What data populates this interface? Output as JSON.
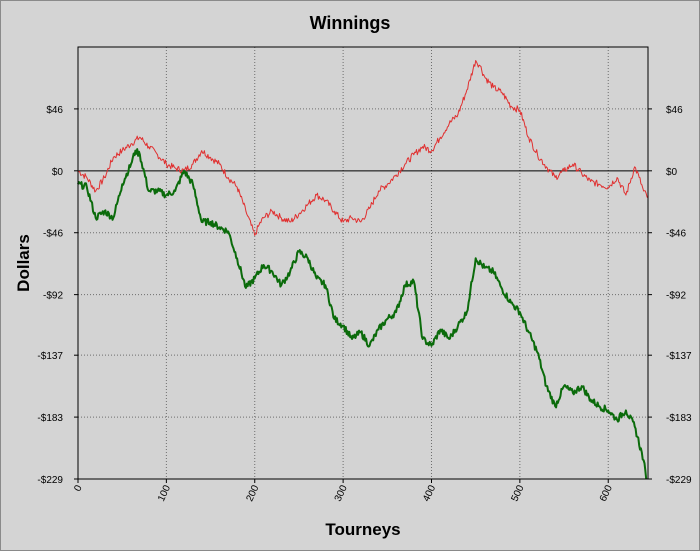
{
  "chart_data": {
    "type": "line",
    "title": "Winnings",
    "xlabel": "Tourneys",
    "ylabel": "Dollars",
    "xlim": [
      0,
      645
    ],
    "ylim": [
      -229,
      92
    ],
    "x_ticks": [
      0,
      100,
      200,
      300,
      400,
      500,
      600
    ],
    "x_tick_labels": [
      "0",
      "100",
      "200",
      "300",
      "400",
      "500",
      "600"
    ],
    "y_ticks": [
      46,
      0,
      -46,
      -92,
      -137,
      -183,
      -229
    ],
    "y_tick_labels": [
      "$46",
      "$0",
      "-$46",
      "-$92",
      "-$137",
      "-$183",
      "-$229"
    ],
    "grid": true,
    "zero_line": true,
    "colors": {
      "plot_background": "#d3d3d3",
      "page_background": "#d4d4d4"
    },
    "series": [
      {
        "color": "#e03030",
        "line_width": 1,
        "points": [
          [
            0,
            0
          ],
          [
            10,
            -5
          ],
          [
            20,
            -15
          ],
          [
            30,
            -5
          ],
          [
            40,
            10
          ],
          [
            50,
            15
          ],
          [
            60,
            20
          ],
          [
            70,
            25
          ],
          [
            80,
            18
          ],
          [
            90,
            12
          ],
          [
            100,
            5
          ],
          [
            110,
            2
          ],
          [
            120,
            0
          ],
          [
            130,
            5
          ],
          [
            140,
            15
          ],
          [
            150,
            10
          ],
          [
            160,
            5
          ],
          [
            170,
            -5
          ],
          [
            180,
            -12
          ],
          [
            190,
            -30
          ],
          [
            200,
            -48
          ],
          [
            205,
            -40
          ],
          [
            210,
            -35
          ],
          [
            220,
            -30
          ],
          [
            230,
            -35
          ],
          [
            240,
            -38
          ],
          [
            250,
            -32
          ],
          [
            260,
            -25
          ],
          [
            270,
            -18
          ],
          [
            280,
            -22
          ],
          [
            290,
            -30
          ],
          [
            300,
            -38
          ],
          [
            310,
            -35
          ],
          [
            320,
            -38
          ],
          [
            330,
            -28
          ],
          [
            340,
            -15
          ],
          [
            350,
            -10
          ],
          [
            360,
            -3
          ],
          [
            370,
            5
          ],
          [
            380,
            12
          ],
          [
            390,
            18
          ],
          [
            400,
            15
          ],
          [
            410,
            25
          ],
          [
            420,
            35
          ],
          [
            430,
            42
          ],
          [
            440,
            60
          ],
          [
            450,
            82
          ],
          [
            455,
            78
          ],
          [
            460,
            70
          ],
          [
            470,
            62
          ],
          [
            480,
            58
          ],
          [
            490,
            48
          ],
          [
            500,
            45
          ],
          [
            510,
            25
          ],
          [
            520,
            12
          ],
          [
            530,
            3
          ],
          [
            540,
            -5
          ],
          [
            550,
            0
          ],
          [
            560,
            5
          ],
          [
            570,
            -2
          ],
          [
            580,
            -8
          ],
          [
            590,
            -10
          ],
          [
            600,
            -12
          ],
          [
            610,
            -5
          ],
          [
            620,
            -18
          ],
          [
            630,
            3
          ],
          [
            635,
            -5
          ],
          [
            640,
            -15
          ],
          [
            645,
            -20
          ]
        ]
      },
      {
        "color": "#0b6b0b",
        "line_width": 2,
        "points": [
          [
            0,
            -10
          ],
          [
            10,
            -12
          ],
          [
            20,
            -35
          ],
          [
            30,
            -30
          ],
          [
            40,
            -35
          ],
          [
            50,
            -10
          ],
          [
            60,
            5
          ],
          [
            65,
            15
          ],
          [
            70,
            12
          ],
          [
            80,
            -15
          ],
          [
            90,
            -15
          ],
          [
            100,
            -18
          ],
          [
            110,
            -15
          ],
          [
            120,
            0
          ],
          [
            130,
            -10
          ],
          [
            140,
            -38
          ],
          [
            150,
            -38
          ],
          [
            160,
            -42
          ],
          [
            170,
            -45
          ],
          [
            180,
            -65
          ],
          [
            190,
            -87
          ],
          [
            200,
            -80
          ],
          [
            210,
            -70
          ],
          [
            220,
            -75
          ],
          [
            230,
            -85
          ],
          [
            240,
            -75
          ],
          [
            250,
            -60
          ],
          [
            260,
            -65
          ],
          [
            270,
            -80
          ],
          [
            280,
            -85
          ],
          [
            290,
            -110
          ],
          [
            300,
            -115
          ],
          [
            310,
            -125
          ],
          [
            320,
            -120
          ],
          [
            330,
            -130
          ],
          [
            340,
            -118
          ],
          [
            350,
            -110
          ],
          [
            360,
            -105
          ],
          [
            370,
            -85
          ],
          [
            380,
            -82
          ],
          [
            390,
            -125
          ],
          [
            400,
            -130
          ],
          [
            410,
            -118
          ],
          [
            420,
            -125
          ],
          [
            430,
            -115
          ],
          [
            440,
            -105
          ],
          [
            450,
            -65
          ],
          [
            460,
            -72
          ],
          [
            470,
            -75
          ],
          [
            480,
            -88
          ],
          [
            490,
            -98
          ],
          [
            500,
            -105
          ],
          [
            510,
            -120
          ],
          [
            520,
            -135
          ],
          [
            530,
            -160
          ],
          [
            540,
            -175
          ],
          [
            550,
            -160
          ],
          [
            560,
            -165
          ],
          [
            570,
            -160
          ],
          [
            580,
            -170
          ],
          [
            590,
            -175
          ],
          [
            600,
            -178
          ],
          [
            610,
            -185
          ],
          [
            620,
            -178
          ],
          [
            630,
            -190
          ],
          [
            640,
            -215
          ],
          [
            643,
            -229
          ]
        ]
      }
    ]
  }
}
